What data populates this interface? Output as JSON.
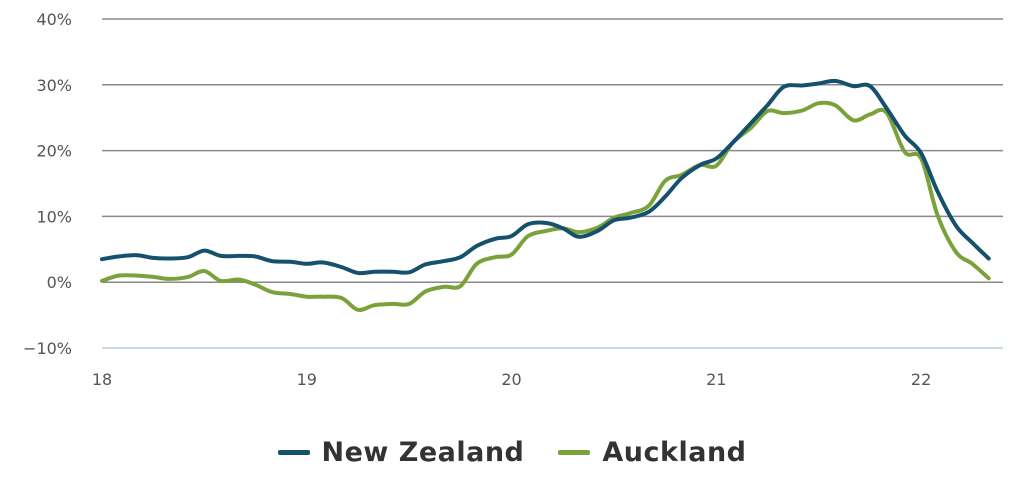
{
  "chart_data": {
    "type": "line",
    "title": "",
    "xlabel": "",
    "ylabel": "",
    "xlim": [
      18,
      22.4
    ],
    "ylim": [
      -10,
      40
    ],
    "yticks": [
      -10,
      0,
      10,
      20,
      30,
      40
    ],
    "ytick_labels": [
      "−10%",
      "0%",
      "10%",
      "20%",
      "30%",
      "40%"
    ],
    "xticks": [
      18,
      19,
      20,
      21,
      22
    ],
    "xtick_labels": [
      "18",
      "19",
      "20",
      "21",
      "22"
    ],
    "grid": "horizontal",
    "legend_position": "bottom-center",
    "series": [
      {
        "name": "New Zealand",
        "color": "#15506d",
        "x": [
          18.0,
          18.08,
          18.17,
          18.25,
          18.33,
          18.42,
          18.5,
          18.58,
          18.67,
          18.75,
          18.83,
          18.92,
          19.0,
          19.08,
          19.17,
          19.25,
          19.33,
          19.42,
          19.5,
          19.58,
          19.67,
          19.75,
          19.83,
          19.92,
          20.0,
          20.08,
          20.17,
          20.25,
          20.33,
          20.42,
          20.5,
          20.58,
          20.67,
          20.75,
          20.83,
          20.92,
          21.0,
          21.08,
          21.17,
          21.25,
          21.33,
          21.42,
          21.5,
          21.58,
          21.67,
          21.75,
          21.83,
          21.92,
          22.0,
          22.08,
          22.17,
          22.25,
          22.33
        ],
        "y": [
          3.5,
          3.9,
          4.1,
          3.7,
          3.6,
          3.8,
          4.8,
          4.0,
          4.0,
          3.9,
          3.2,
          3.1,
          2.8,
          3.0,
          2.3,
          1.4,
          1.6,
          1.6,
          1.5,
          2.7,
          3.2,
          3.8,
          5.5,
          6.6,
          7.0,
          8.8,
          9.0,
          8.2,
          6.9,
          7.8,
          9.4,
          9.8,
          10.7,
          13.0,
          15.8,
          17.8,
          18.8,
          21.2,
          24.2,
          26.9,
          29.7,
          29.9,
          30.2,
          30.6,
          29.8,
          29.8,
          26.5,
          22.3,
          19.6,
          13.8,
          8.6,
          6.0,
          3.6
        ]
      },
      {
        "name": "Auckland",
        "color": "#7ba23a",
        "x": [
          18.0,
          18.08,
          18.17,
          18.25,
          18.33,
          18.42,
          18.5,
          18.58,
          18.67,
          18.75,
          18.83,
          18.92,
          19.0,
          19.08,
          19.17,
          19.25,
          19.33,
          19.42,
          19.5,
          19.58,
          19.67,
          19.75,
          19.83,
          19.92,
          20.0,
          20.08,
          20.17,
          20.25,
          20.33,
          20.42,
          20.5,
          20.58,
          20.67,
          20.75,
          20.83,
          20.92,
          21.0,
          21.08,
          21.17,
          21.25,
          21.33,
          21.42,
          21.5,
          21.58,
          21.67,
          21.75,
          21.83,
          21.92,
          22.0,
          22.08,
          22.17,
          22.25,
          22.33
        ],
        "y": [
          0.2,
          1.0,
          1.0,
          0.8,
          0.5,
          0.8,
          1.7,
          0.2,
          0.4,
          -0.4,
          -1.5,
          -1.8,
          -2.2,
          -2.2,
          -2.4,
          -4.2,
          -3.5,
          -3.3,
          -3.3,
          -1.4,
          -0.7,
          -0.6,
          2.8,
          3.8,
          4.2,
          7.0,
          7.8,
          8.2,
          7.6,
          8.3,
          9.8,
          10.5,
          11.6,
          15.4,
          16.3,
          17.8,
          17.7,
          21.2,
          23.5,
          26.0,
          25.7,
          26.1,
          27.2,
          26.9,
          24.6,
          25.5,
          25.8,
          19.8,
          18.8,
          10.2,
          4.6,
          2.8,
          0.6
        ]
      }
    ]
  }
}
